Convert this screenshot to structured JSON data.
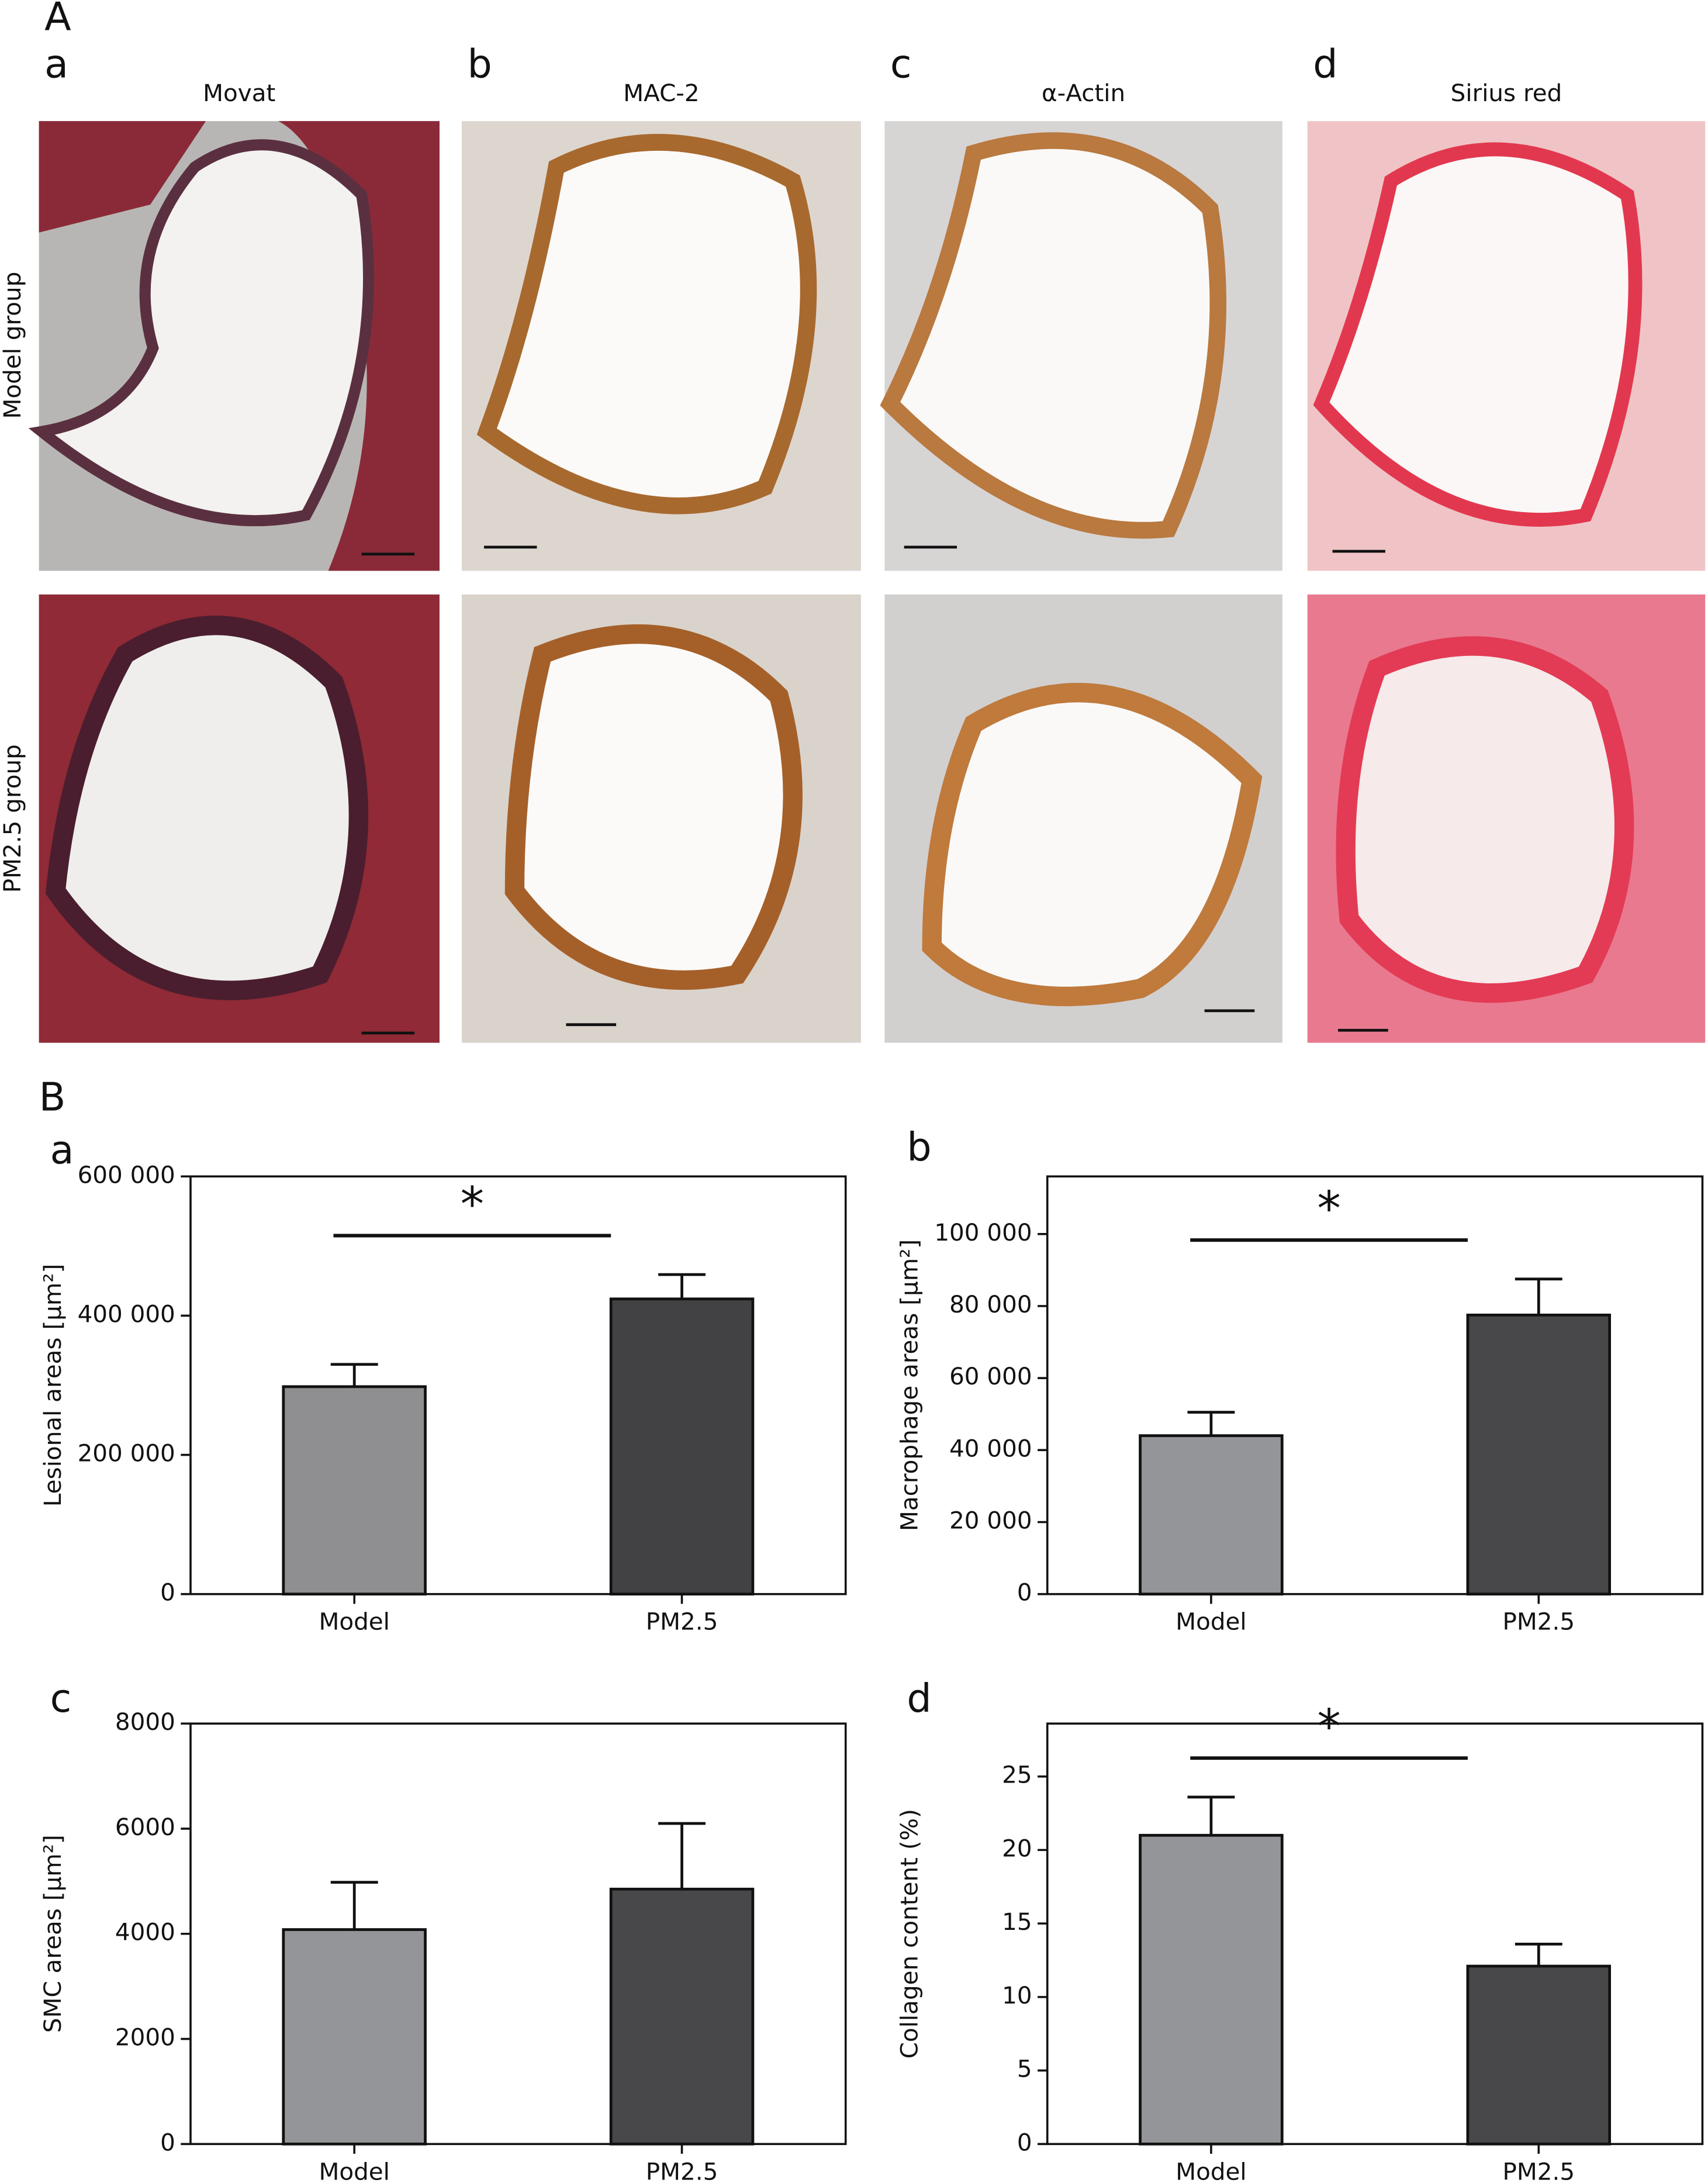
{
  "figure": {
    "sections": [
      "A",
      "B"
    ],
    "columns": [
      {
        "letter": "a",
        "title": "Movat"
      },
      {
        "letter": "b",
        "title": "MAC-2"
      },
      {
        "letter": "c",
        "title": "α-Actin"
      },
      {
        "letter": "d",
        "title": "Sirius red"
      }
    ],
    "rows": [
      "Model group",
      "PM2.5 group"
    ]
  },
  "chart_data": [
    {
      "type": "bar",
      "panel": "a",
      "y_label": "Lesional areas [µm²]",
      "categories": [
        "Model",
        "PM2.5"
      ],
      "values": [
        298000,
        424000
      ],
      "errors": [
        32000,
        35000
      ],
      "colors": [
        "#8f8f91",
        "#424244"
      ],
      "ylim": [
        0,
        600000
      ],
      "yticks": [
        0,
        {
          "value": 200000,
          "label": "200 000"
        },
        {
          "value": 400000,
          "label": "400 000"
        },
        {
          "value": 600000,
          "label": "600 000"
        }
      ],
      "annotation": "*"
    },
    {
      "type": "bar",
      "panel": "b",
      "y_label": "Macrophage areas [µm²]",
      "categories": [
        "Model",
        "PM2.5"
      ],
      "values": [
        44000,
        77500
      ],
      "errors": [
        6500,
        10000
      ],
      "colors": [
        "#949598",
        "#48484b"
      ],
      "ylim": [
        0,
        116000
      ],
      "yticks": [
        0,
        {
          "value": 20000,
          "label": "20 000"
        },
        {
          "value": 40000,
          "label": "40 000"
        },
        {
          "value": 60000,
          "label": "60 000"
        },
        {
          "value": 80000,
          "label": "80 000"
        },
        {
          "value": 100000,
          "label": "100 000"
        }
      ],
      "annotation": "*"
    },
    {
      "type": "bar",
      "panel": "c",
      "y_label": "SMC areas [µm²]",
      "categories": [
        "Model",
        "PM2.5"
      ],
      "values": [
        4080,
        4850
      ],
      "errors": [
        900,
        1250
      ],
      "colors": [
        "#949598",
        "#48484b"
      ],
      "ylim": [
        0,
        8000
      ],
      "yticks": [
        0,
        2000,
        4000,
        6000,
        8000
      ]
    },
    {
      "type": "bar",
      "panel": "d",
      "y_label": "Collagen content (%)",
      "categories": [
        "Model",
        "PM2.5"
      ],
      "values": [
        21,
        12.1
      ],
      "errors": [
        2.6,
        1.5
      ],
      "colors": [
        "#949598",
        "#48484b"
      ],
      "ylim": [
        0,
        28.6
      ],
      "yticks": [
        0,
        5,
        10,
        15,
        20,
        25
      ],
      "annotation": "*"
    }
  ]
}
